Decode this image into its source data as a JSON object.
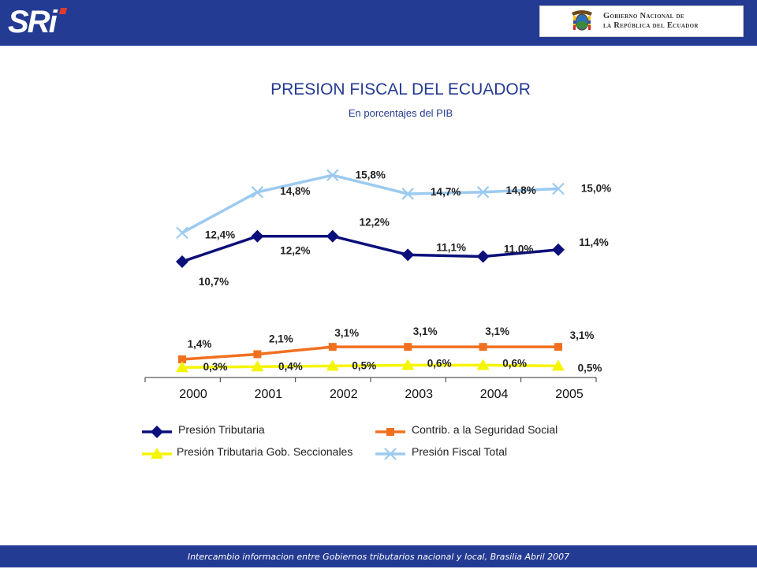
{
  "header": {
    "logo_text": "SRi",
    "gov_line1": "Gobierno Nacional de",
    "gov_line2": "la República del Ecuador"
  },
  "footer": {
    "text": "Intercambio informacion entre Gobiernos tributarios nacional y local, Brasilia Abril 2007"
  },
  "chart_data": {
    "type": "line",
    "title": "PRESION FISCAL DEL ECUADOR",
    "subtitle": "En porcentajes del PIB",
    "x": [
      "2000",
      "2001",
      "2002",
      "2003",
      "2004",
      "2005"
    ],
    "legend_placement": "bottom",
    "grid": false,
    "series": [
      {
        "name": "Presión Tributaria",
        "values": [
          10.7,
          12.2,
          12.2,
          11.1,
          11.0,
          11.4
        ],
        "labels": [
          "10,7%",
          "12,2%",
          "12,2%",
          "11,1%",
          "11,0%",
          "11,4%"
        ],
        "color": "#0b0f7a",
        "marker": "diamond"
      },
      {
        "name": "Contrib. a la Seguridad Social",
        "values": [
          1.4,
          2.1,
          3.1,
          3.1,
          3.1,
          3.1
        ],
        "labels": [
          "1,4%",
          "2,1%",
          "3,1%",
          "3,1%",
          "3,1%",
          "3,1%"
        ],
        "color": "#f07020",
        "marker": "square"
      },
      {
        "name": "Presión Tributaria Gob. Seccionales",
        "values": [
          0.3,
          0.4,
          0.5,
          0.6,
          0.6,
          0.5
        ],
        "labels": [
          "0,3%",
          "0,4%",
          "0,5%",
          "0,6%",
          "0,6%",
          "0,5%"
        ],
        "color": "#f5f500",
        "marker": "triangle"
      },
      {
        "name": "Presión Fiscal Total",
        "values": [
          12.4,
          14.8,
          15.8,
          14.7,
          14.8,
          15.0
        ],
        "labels": [
          "12,4%",
          "14,8%",
          "15,8%",
          "14,7%",
          "14,8%",
          "15,0%"
        ],
        "color": "#9ccaf0",
        "marker": "x"
      }
    ]
  }
}
